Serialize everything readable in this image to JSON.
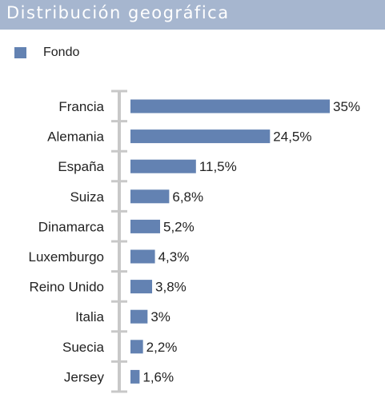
{
  "header": {
    "title": "Distribución geográfica"
  },
  "colors": {
    "header_bg": "#a6b6cf",
    "bar": "#6382b2",
    "axis": "#c8c8c8"
  },
  "chart_data": {
    "type": "bar",
    "orientation": "horizontal",
    "title": "Distribución geográfica",
    "legend": {
      "position": "top-left",
      "entries": [
        "Fondo"
      ]
    },
    "categories": [
      "Francia",
      "Alemania",
      "España",
      "Suiza",
      "Dinamarca",
      "Luxemburgo",
      "Reino Unido",
      "Italia",
      "Suecia",
      "Jersey"
    ],
    "series": [
      {
        "name": "Fondo",
        "values": [
          35,
          24.5,
          11.5,
          6.8,
          5.2,
          4.3,
          3.8,
          3,
          2.2,
          1.6
        ],
        "labels": [
          "35%",
          "24,5%",
          "11,5%",
          "6,8%",
          "5,2%",
          "4,3%",
          "3,8%",
          "3%",
          "2,2%",
          "1,6%"
        ]
      }
    ],
    "xlim": [
      0,
      35
    ],
    "grid": false
  }
}
